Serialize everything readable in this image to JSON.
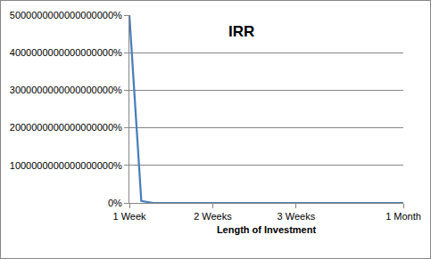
{
  "chart_data": {
    "type": "line",
    "title": "IRR",
    "x_label": "Length of Investment",
    "categories": [
      "1 Week",
      null,
      null,
      null,
      null,
      null,
      null,
      "2 Weeks",
      null,
      null,
      null,
      null,
      null,
      null,
      "3 Weeks",
      null,
      null,
      null,
      null,
      null,
      null,
      null,
      null,
      "1 Month"
    ],
    "values": [
      5000000000000000000,
      50000000000000000,
      0,
      0,
      0,
      0,
      0,
      0,
      0,
      0,
      0,
      0,
      0,
      0,
      0,
      0,
      0,
      0,
      0,
      0,
      0,
      0,
      0,
      0
    ],
    "color": "#4a7ebb",
    "line_style": "solid",
    "marker": "none",
    "ylim": [
      0,
      5000000000000000000
    ],
    "yticks": [
      {
        "value": 0,
        "label": "0%"
      },
      {
        "value": 1000000000000000000,
        "label": "1000000000000000000%"
      },
      {
        "value": 2000000000000000000,
        "label": "2000000000000000000%"
      },
      {
        "value": 3000000000000000000,
        "label": "3000000000000000000%"
      },
      {
        "value": 4000000000000000000,
        "label": "4000000000000000000%"
      },
      {
        "value": 5000000000000000000,
        "label": "5000000000000000000%"
      }
    ],
    "grid": true
  }
}
